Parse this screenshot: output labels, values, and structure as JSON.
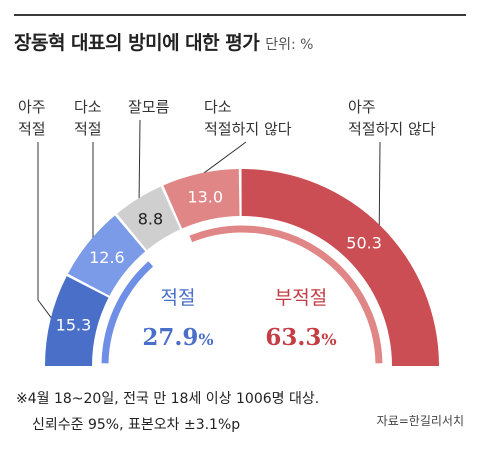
{
  "title": "장동혁 대표의 방미에 대한 평가",
  "unit_label": "단위: %",
  "chart_data": {
    "type": "pie",
    "shape": "semicircle-donut",
    "title": "장동혁 대표의 방미에 대한 평가",
    "unit": "%",
    "categories": [
      "아주 적절",
      "다소 적절",
      "잘모름",
      "다소 적절하지 않다",
      "아주 적절하지 않다"
    ],
    "category_lines": [
      [
        "아주",
        "적절"
      ],
      [
        "다소",
        "적절"
      ],
      [
        "잘모름"
      ],
      [
        "다소",
        "적절하지 않다"
      ],
      [
        "아주",
        "적절하지 않다"
      ]
    ],
    "values": [
      15.3,
      12.6,
      8.8,
      13.0,
      50.3
    ],
    "value_labels": [
      "15.3",
      "12.6",
      "8.8",
      "13.0",
      "50.3"
    ],
    "colors": [
      "#4a6fc9",
      "#7b9ae8",
      "#cfcfcf",
      "#e08686",
      "#cc4e55"
    ],
    "groups": [
      {
        "label": "적절",
        "value_text": "27.9",
        "suffix": "%",
        "value": 27.9,
        "members": [
          0,
          1
        ],
        "color": "#4a6fc9",
        "arc_color": "#6f8fe6"
      },
      {
        "label": "부적절",
        "value_text": "63.3",
        "suffix": "%",
        "value": 63.3,
        "members": [
          3,
          4
        ],
        "color": "#c43d45",
        "arc_color": "#e08686"
      }
    ]
  },
  "footnote": {
    "line1": "※4월 18~20일, 전국 만 18세 이상 1006명 대상.",
    "line2": "신뢰수준 95%, 표본오차 ±3.1%p"
  },
  "source": "자료=한길리서치"
}
